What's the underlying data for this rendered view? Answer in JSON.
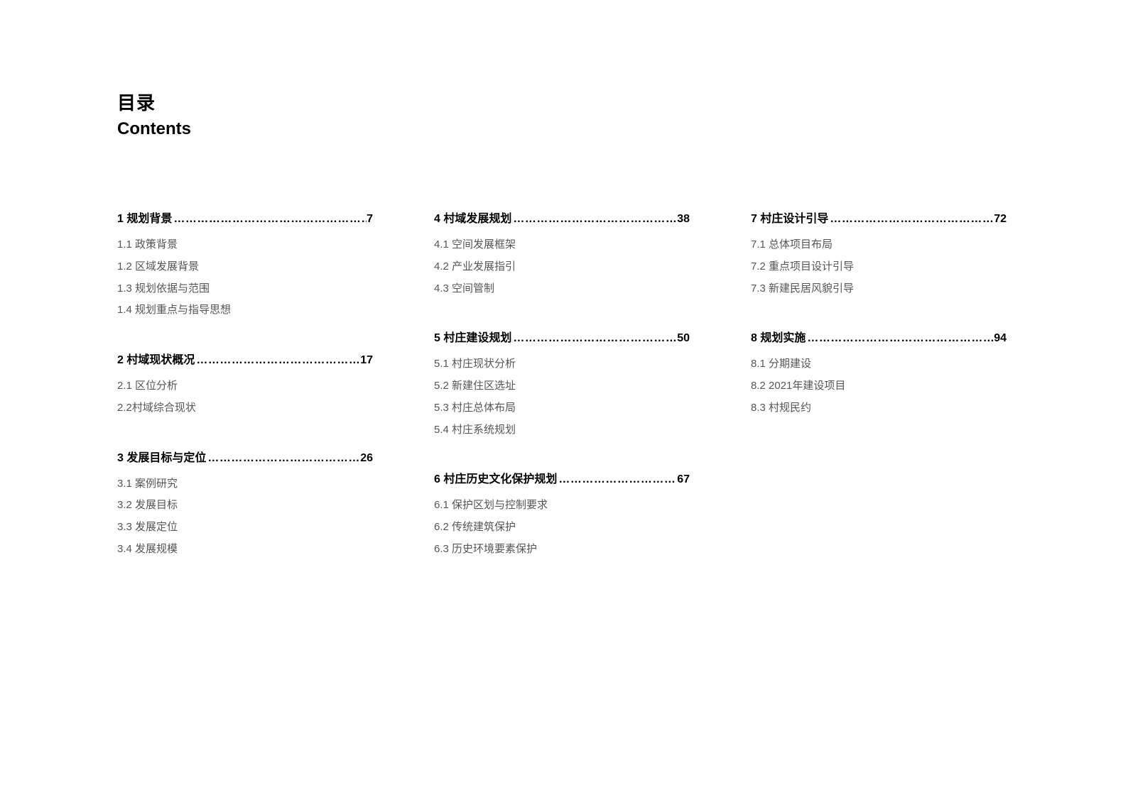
{
  "title_zh": "目录",
  "title_en": "Contents",
  "columns": [
    [
      {
        "label": "1 规划背景",
        "page": "7",
        "items": [
          "1.1 政策背景",
          "1.2 区域发展背景",
          "1.3 规划依据与范围",
          "1.4 规划重点与指导思想"
        ]
      },
      {
        "label": "2 村域现状概况",
        "page": "17",
        "items": [
          "2.1 区位分析",
          "2.2村域综合现状"
        ]
      },
      {
        "label": "3 发展目标与定位",
        "page": "26",
        "items": [
          "3.1 案例研究",
          "3.2 发展目标",
          "3.3 发展定位",
          "3.4 发展规模"
        ]
      }
    ],
    [
      {
        "label": "4 村域发展规划",
        "page": "38",
        "items": [
          "4.1 空间发展框架",
          "4.2 产业发展指引",
          "4.3 空间管制"
        ]
      },
      {
        "label": "5 村庄建设规划",
        "page": "50",
        "items": [
          "5.1 村庄现状分析",
          "5.2 新建住区选址",
          "5.3 村庄总体布局",
          "5.4 村庄系统规划"
        ]
      },
      {
        "label": "6 村庄历史文化保护规划",
        "page": "67",
        "items": [
          "6.1 保护区划与控制要求",
          "6.2 传统建筑保护",
          "6.3 历史环境要素保护"
        ]
      }
    ],
    [
      {
        "label": "7 村庄设计引导",
        "page": "72",
        "items": [
          "7.1 总体项目布局",
          "7.2 重点项目设计引导",
          "7.3 新建民居风貌引导"
        ]
      },
      {
        "label": "8 规划实施",
        "page": "94",
        "items": [
          "8.1 分期建设",
          "8.2 2021年建设项目",
          "8.3 村规民约"
        ]
      }
    ]
  ]
}
